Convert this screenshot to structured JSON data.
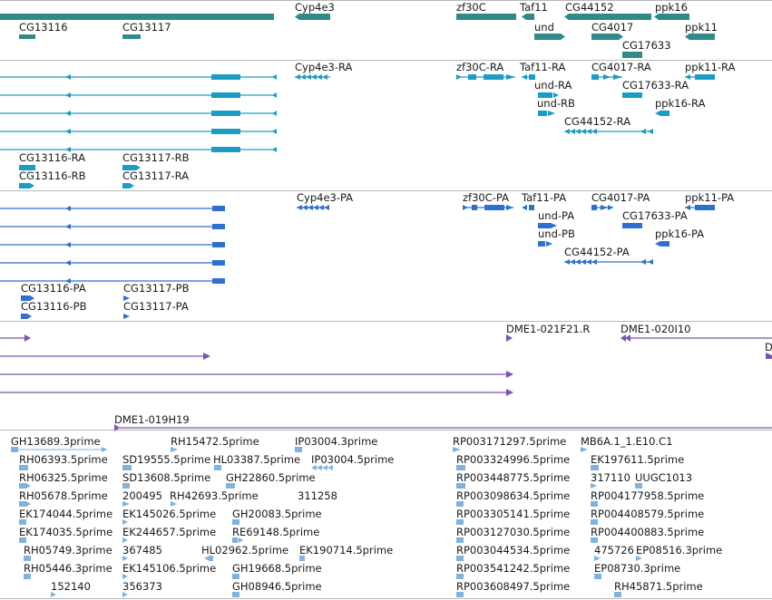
{
  "colors": {
    "gene": "#2f8a88",
    "transcript": "#1a9cc4",
    "protein": "#2e6fd0",
    "bac": "#7a55b0",
    "est": "#7fb2dd"
  },
  "genes": [
    "Cyp4e3",
    "zf30C",
    "Taf11",
    "CG44152",
    "ppk16",
    "CG13116",
    "CG13117",
    "und",
    "CG4017",
    "ppk11",
    "CG17633"
  ],
  "transcripts": [
    "Cyp4e3-RA",
    "zf30C-RA",
    "Taf11-RA",
    "CG4017-RA",
    "ppk11-RA",
    "und-RA",
    "CG17633-RA",
    "und-RB",
    "ppk16-RA",
    "CG44152-RA",
    "CG13116-RA",
    "CG13117-RB",
    "CG13116-RB",
    "CG13117-RA"
  ],
  "proteins": [
    "Cyp4e3-PA",
    "zf30C-PA",
    "Taf11-PA",
    "CG4017-PA",
    "ppk11-PA",
    "und-PA",
    "CG17633-PA",
    "und-PB",
    "ppk16-PA",
    "CG44152-PA",
    "CG13116-PA",
    "CG13117-PB",
    "CG13116-PB",
    "CG13117-PA"
  ],
  "bacs": [
    "DME1-021F21.R",
    "DME1-020I10",
    "D",
    "DME1-019H19"
  ],
  "ests": [
    "GH13689.3prime",
    "RH15472.5prime",
    "IP03004.3prime",
    "RP003171297.5prime",
    "MB6A.1_1.E10.C1",
    "RH06393.5prime",
    "SD19555.5prime",
    "HL03387.5prime",
    "IP03004.5prime",
    "RP003324996.5prime",
    "EK197611.5prime",
    "RH06325.5prime",
    "SD13608.5prime",
    "GH22860.5prime",
    "RP003448775.5prime",
    "317110",
    "UUGC1013",
    "RH05678.5prime",
    "200495",
    "RH42693.5prime",
    "311258",
    "RP003098634.5prime",
    "RP004177958.5prime",
    "EK174044.5prime",
    "EK145026.5prime",
    "GH20083.5prime",
    "RP003305141.5prime",
    "RP004408579.5prime",
    "EK174035.5prime",
    "EK244657.5prime",
    "RE69148.5prime",
    "RP003127030.5prime",
    "RP004400883.5prime",
    "RH05749.3prime",
    "367485",
    "HL02962.5prime",
    "EK190714.5prime",
    "RP003044534.5prime",
    "475726",
    "EP08516.3prime",
    "RH05446.3prime",
    "EK145106.5prime",
    "GH19668.5prime",
    "RP003541242.5prime",
    "EP08730.3prime",
    "152140",
    "356373",
    "GH08946.5prime",
    "RP003608497.5prime",
    "RH45871.5prime"
  ]
}
